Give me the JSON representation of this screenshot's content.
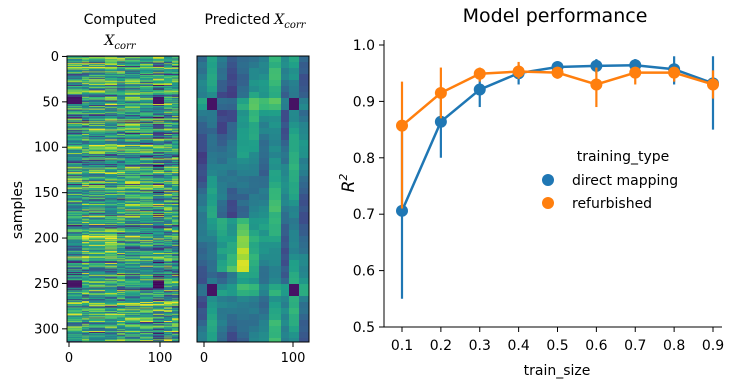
{
  "heatmaps": {
    "computed_title": "Computed",
    "computed_sub": "X",
    "computed_sub_idx": "corr",
    "predicted_title": "Predicted",
    "predicted_sub": "X",
    "predicted_sub_idx": "corr",
    "ylabel": "samples",
    "yticks": [
      "0",
      "50",
      "100",
      "150",
      "200",
      "250",
      "300"
    ],
    "xticks": [
      "0",
      "100"
    ]
  },
  "chart_data": {
    "type": "line",
    "title": "Model performance",
    "xlabel": "train_size",
    "ylabel_base": "R",
    "ylabel_sup": "2",
    "categories": [
      "0.1",
      "0.2",
      "0.3",
      "0.4",
      "0.5",
      "0.6",
      "0.7",
      "0.8",
      "0.9"
    ],
    "ylim": [
      0.5,
      1.0
    ],
    "yticks": [
      "0.5",
      "0.6",
      "0.7",
      "0.8",
      "0.9",
      "1.0"
    ],
    "legend_title": "training_type",
    "legend_position": "center-right",
    "series": [
      {
        "name": "direct mapping",
        "color": "#1f77b4",
        "values": [
          0.706,
          0.864,
          0.921,
          0.95,
          0.961,
          0.963,
          0.964,
          0.957,
          0.932
        ],
        "err_low": [
          0.55,
          0.8,
          0.89,
          0.93,
          0.95,
          0.95,
          0.955,
          0.93,
          0.85
        ],
        "err_high": [
          0.86,
          0.92,
          0.95,
          0.965,
          0.97,
          0.975,
          0.975,
          0.98,
          0.98
        ]
      },
      {
        "name": "refurbished",
        "color": "#ff7f0e",
        "values": [
          0.857,
          0.915,
          0.949,
          0.953,
          0.951,
          0.93,
          0.951,
          0.951,
          0.93
        ],
        "err_low": [
          0.71,
          0.87,
          0.935,
          0.94,
          0.94,
          0.89,
          0.93,
          0.935,
          0.905
        ],
        "err_high": [
          0.935,
          0.96,
          0.96,
          0.97,
          0.96,
          0.96,
          0.96,
          0.96,
          0.955
        ]
      }
    ]
  }
}
